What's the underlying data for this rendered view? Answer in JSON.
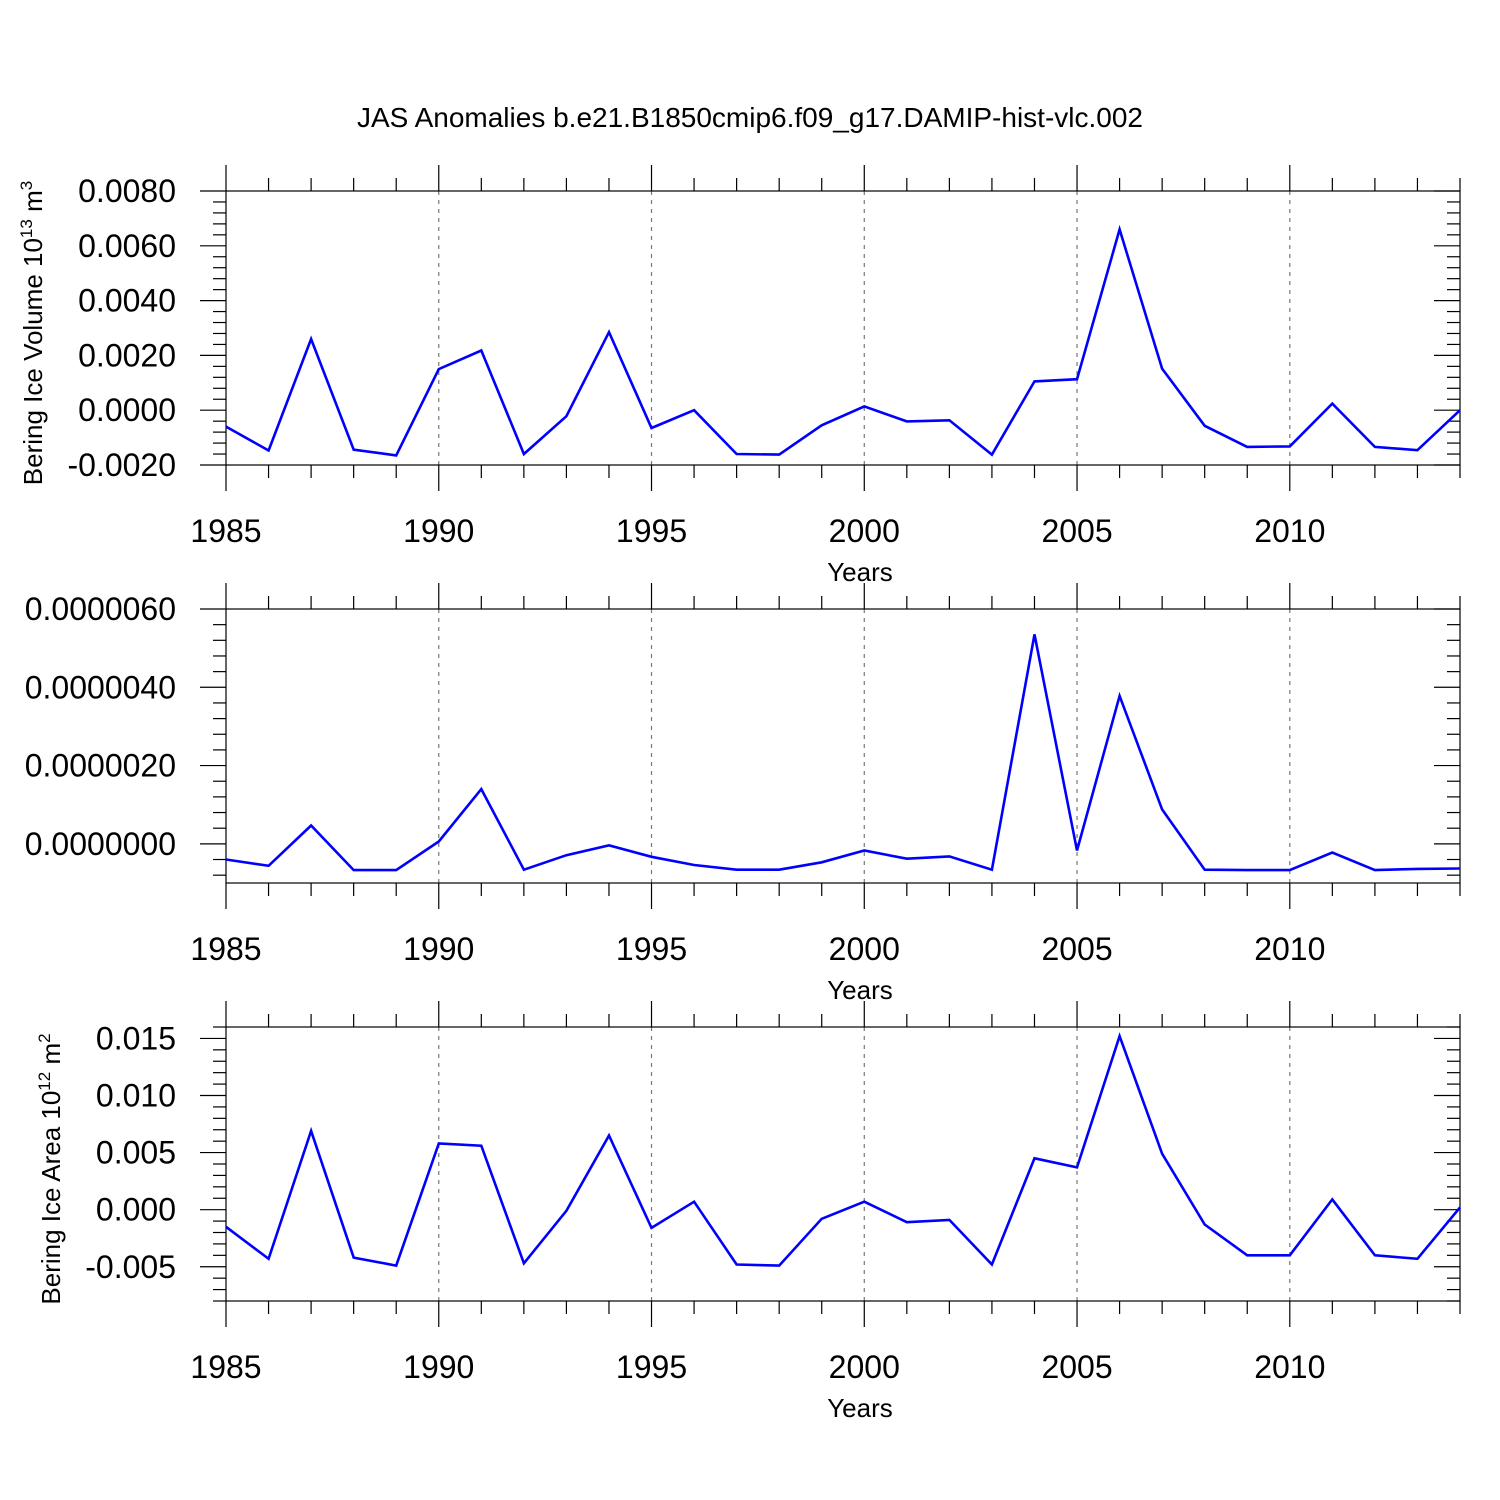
{
  "title": "JAS Anomalies b.e21.B1850cmip6.f09_g17.DAMIP-hist-vlc.002",
  "colors": {
    "line": "#0000ff",
    "grid": "#777777",
    "axis": "#000000"
  },
  "chart_data": [
    {
      "type": "line",
      "ylabel": "Bering Ice Volume 10",
      "ylabel_sup": "13",
      "ylabel_unit": " m",
      "ylabel_unit_sup": "3",
      "xlabel": "Years",
      "xlim": [
        1985,
        2014
      ],
      "ylim": [
        -0.002,
        0.008
      ],
      "xticks": [
        "1985",
        "1990",
        "1995",
        "2000",
        "2005",
        "2010"
      ],
      "yticks": [
        "0.0080",
        "0.0060",
        "0.0040",
        "0.0020",
        "0.0000",
        "-0.0020"
      ],
      "ytick_values": [
        0.008,
        0.006,
        0.004,
        0.002,
        0.0,
        -0.002
      ],
      "grid_x": [
        1990,
        1995,
        2000,
        2005,
        2010
      ],
      "x": [
        1985,
        1986,
        1987,
        1988,
        1989,
        1990,
        1991,
        1992,
        1993,
        1994,
        1995,
        1996,
        1997,
        1998,
        1999,
        2000,
        2001,
        2002,
        2003,
        2004,
        2005,
        2006,
        2007,
        2008,
        2009,
        2010,
        2011,
        2012,
        2013,
        2014
      ],
      "values": [
        -0.0006,
        -0.00147,
        0.0026,
        -0.00144,
        -0.00165,
        0.0015,
        0.00218,
        -0.0016,
        -0.00022,
        0.00285,
        -0.00065,
        0.0,
        -0.0016,
        -0.00162,
        -0.00055,
        0.00014,
        -0.00041,
        -0.00037,
        -0.00162,
        0.00105,
        0.00113,
        0.0066,
        0.00152,
        -0.00057,
        -0.00134,
        -0.00132,
        0.00024,
        -0.00134,
        -0.00146,
        0.0
      ]
    },
    {
      "type": "line",
      "ylabel": "",
      "xlabel": "Years",
      "xlim": [
        1985,
        2014
      ],
      "ylim": [
        -1e-06,
        6e-06
      ],
      "xticks": [
        "1985",
        "1990",
        "1995",
        "2000",
        "2005",
        "2010"
      ],
      "yticks": [
        "0.0000060",
        "0.0000040",
        "0.0000020",
        "0.0000000"
      ],
      "ytick_values": [
        6e-06,
        4e-06,
        2e-06,
        0.0
      ],
      "grid_x": [
        1990,
        1995,
        2000,
        2005,
        2010
      ],
      "x": [
        1985,
        1986,
        1987,
        1988,
        1989,
        1990,
        1991,
        1992,
        1993,
        1994,
        1995,
        1996,
        1997,
        1998,
        1999,
        2000,
        2001,
        2002,
        2003,
        2004,
        2005,
        2006,
        2007,
        2008,
        2009,
        2010,
        2011,
        2012,
        2013,
        2014
      ],
      "values": [
        -4e-07,
        -5.6e-07,
        4.7e-07,
        -6.7e-07,
        -6.7e-07,
        6e-08,
        1.4e-06,
        -6.6e-07,
        -2.9e-07,
        -4e-08,
        -3.3e-07,
        -5.4e-07,
        -6.6e-07,
        -6.6e-07,
        -4.7e-07,
        -1.7e-07,
        -3.8e-07,
        -3.2e-07,
        -6.6e-07,
        5.35e-06,
        -1.7e-07,
        3.78e-06,
        8.8e-07,
        -6.6e-07,
        -6.7e-07,
        -6.7e-07,
        -2.2e-07,
        -6.7e-07,
        -6.4e-07,
        -6.3e-07
      ]
    },
    {
      "type": "line",
      "ylabel": "Bering Ice Area 10",
      "ylabel_sup": "12",
      "ylabel_unit": " m",
      "ylabel_unit_sup": "2",
      "xlabel": "Years",
      "xlim": [
        1985,
        2014
      ],
      "ylim": [
        -0.008,
        0.016
      ],
      "xticks": [
        "1985",
        "1990",
        "1995",
        "2000",
        "2005",
        "2010"
      ],
      "yticks": [
        "0.015",
        "0.010",
        "0.005",
        "0.000",
        "-0.005"
      ],
      "ytick_values": [
        0.015,
        0.01,
        0.005,
        0.0,
        -0.005
      ],
      "grid_x": [
        1990,
        1995,
        2000,
        2005,
        2010
      ],
      "x": [
        1985,
        1986,
        1987,
        1988,
        1989,
        1990,
        1991,
        1992,
        1993,
        1994,
        1995,
        1996,
        1997,
        1998,
        1999,
        2000,
        2001,
        2002,
        2003,
        2004,
        2005,
        2006,
        2007,
        2008,
        2009,
        2010,
        2011,
        2012,
        2013,
        2014
      ],
      "values": [
        -0.0015,
        -0.0043,
        0.0069,
        -0.0042,
        -0.0049,
        0.0058,
        0.0056,
        -0.0047,
        -0.0001,
        0.0065,
        -0.0016,
        0.0007,
        -0.0048,
        -0.0049,
        -0.0008,
        0.0007,
        -0.0011,
        -0.0009,
        -0.0048,
        0.0045,
        0.0037,
        0.0152,
        0.0049,
        -0.0013,
        -0.004,
        -0.004,
        0.0009,
        -0.004,
        -0.0043,
        0.0002
      ]
    }
  ]
}
